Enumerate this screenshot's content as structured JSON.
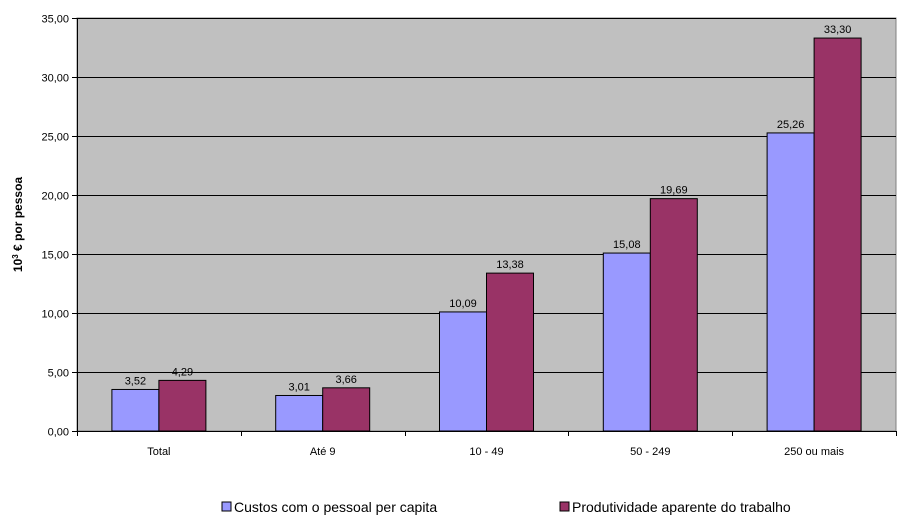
{
  "chart_data": {
    "type": "bar",
    "title": "",
    "xlabel": "",
    "ylabel": "10³ € por pessoa",
    "ylabel_parts": {
      "base": "10",
      "exponent": "3",
      "rest": " € por pessoa"
    },
    "categories": [
      "Total",
      "Até 9",
      "10 - 49",
      "50 - 249",
      "250 ou mais"
    ],
    "ylim": [
      0,
      35
    ],
    "y_ticks": [
      0,
      5,
      10,
      15,
      20,
      25,
      30,
      35
    ],
    "y_tick_labels": [
      "0,00",
      "5,00",
      "10,00",
      "15,00",
      "20,00",
      "25,00",
      "30,00",
      "35,00"
    ],
    "grid": true,
    "legend_position": "bottom",
    "plot_background": "#c0c0c0",
    "series": [
      {
        "name": "Custos com o pessoal per capita",
        "color": "#9999ff",
        "values": [
          3.52,
          3.01,
          10.09,
          15.08,
          25.26
        ],
        "labels": [
          "3,52",
          "3,01",
          "10,09",
          "15,08",
          "25,26"
        ]
      },
      {
        "name": "Produtividade aparente do trabalho",
        "color": "#993366",
        "values": [
          4.29,
          3.66,
          13.38,
          19.69,
          33.3
        ],
        "labels": [
          "4,29",
          "3,66",
          "13,38",
          "19,69",
          "33,30"
        ]
      }
    ]
  }
}
